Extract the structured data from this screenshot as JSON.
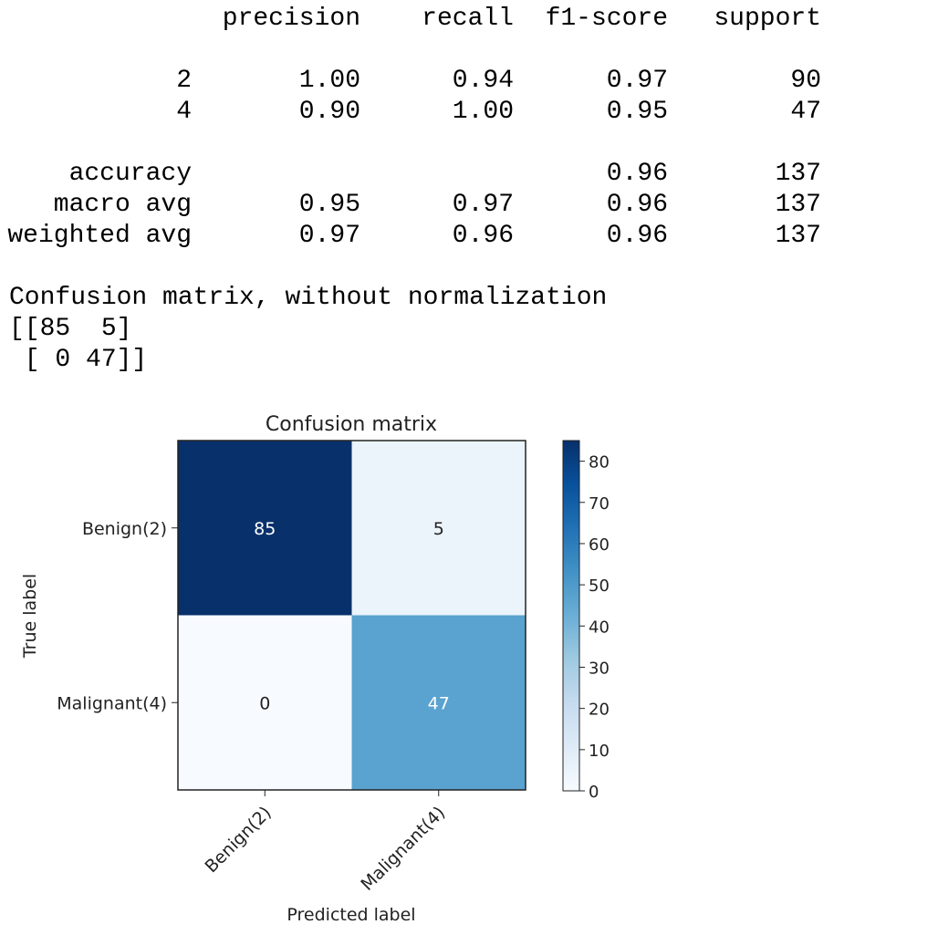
{
  "report": {
    "headers": [
      "precision",
      "recall",
      "f1-score",
      "support"
    ],
    "rows": [
      {
        "label": "2",
        "values": [
          "1.00",
          "0.94",
          "0.97",
          "90"
        ]
      },
      {
        "label": "4",
        "values": [
          "0.90",
          "1.00",
          "0.95",
          "47"
        ]
      },
      null,
      {
        "label": "accuracy",
        "values": [
          "",
          "",
          "0.96",
          "137"
        ]
      },
      {
        "label": "macro avg",
        "values": [
          "0.95",
          "0.97",
          "0.96",
          "137"
        ]
      },
      {
        "label": "weighted avg",
        "values": [
          "0.97",
          "0.96",
          "0.96",
          "137"
        ]
      }
    ]
  },
  "confusion_text": {
    "title": "Confusion matrix, without normalization",
    "line1": "[[85  5]",
    "line2": " [ 0 47]]"
  },
  "chart_data": {
    "type": "heatmap",
    "title": "Confusion matrix",
    "xlabel": "Predicted label",
    "ylabel": "True label",
    "x_categories": [
      "Benign(2)",
      "Malignant(4)"
    ],
    "y_categories": [
      "Benign(2)",
      "Malignant(4)"
    ],
    "matrix": [
      [
        85,
        5
      ],
      [
        0,
        47
      ]
    ],
    "colormap": "Blues",
    "colorbar": {
      "min": 0,
      "max": 85,
      "ticks": [
        0,
        10,
        20,
        30,
        40,
        50,
        60,
        70,
        80
      ]
    }
  }
}
